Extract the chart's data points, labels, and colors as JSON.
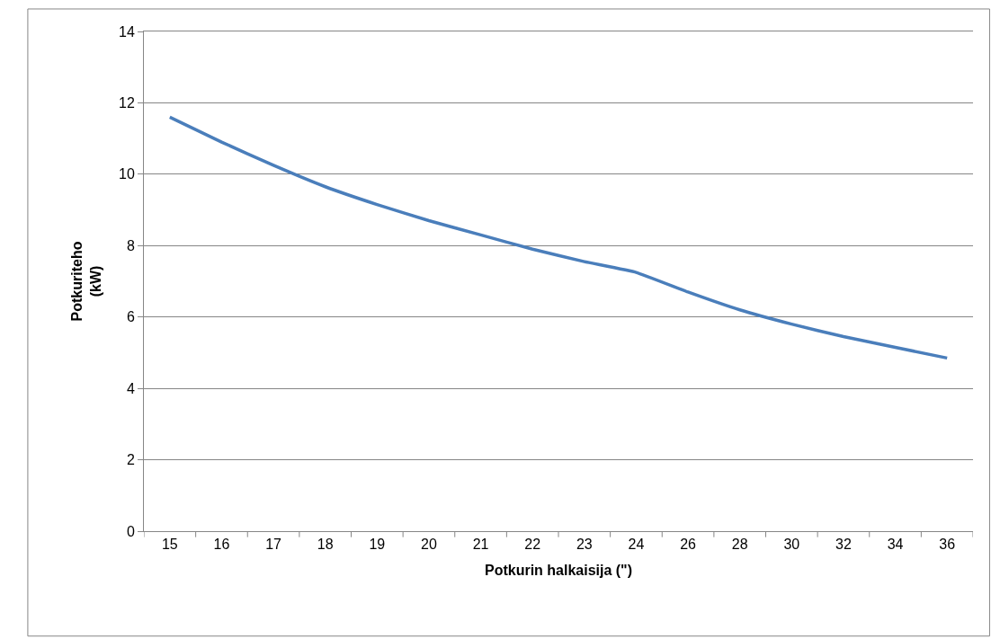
{
  "chart_data": {
    "type": "line",
    "xlabel": "Potkurin halkaisija (\")",
    "ylabel": "Potkuriteho\n(kW)",
    "categories": [
      "15",
      "16",
      "17",
      "18",
      "19",
      "20",
      "21",
      "22",
      "23",
      "24",
      "26",
      "28",
      "30",
      "32",
      "34",
      "36"
    ],
    "series": [
      {
        "color": "#4a7ebb",
        "values": [
          11.6,
          10.9,
          10.25,
          9.65,
          9.15,
          8.7,
          8.3,
          7.9,
          7.55,
          7.25,
          6.7,
          6.2,
          5.8,
          5.45,
          5.15,
          4.85
        ]
      }
    ],
    "ylim": [
      0,
      14
    ],
    "yticks": [
      0,
      2,
      4,
      6,
      8,
      10,
      12,
      14
    ],
    "grid": "y",
    "marker": "none",
    "line_style": "solid"
  }
}
